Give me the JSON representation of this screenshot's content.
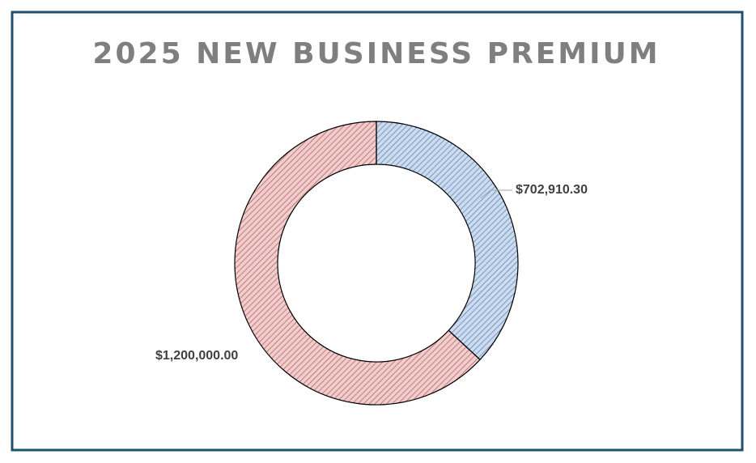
{
  "chart_data": {
    "type": "donut",
    "title": "2025 NEW BUSINESS PREMIUM",
    "values": [
      702910.3,
      1200000.0
    ],
    "value_labels": [
      "$702,910.30",
      "$1,200,000.00"
    ],
    "colors": [
      "#4a7ebb",
      "#c0504d"
    ]
  }
}
